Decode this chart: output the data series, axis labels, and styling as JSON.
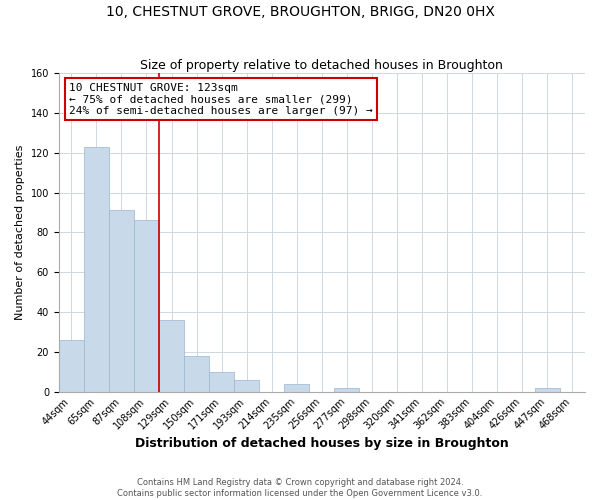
{
  "title": "10, CHESTNUT GROVE, BROUGHTON, BRIGG, DN20 0HX",
  "subtitle": "Size of property relative to detached houses in Broughton",
  "xlabel": "Distribution of detached houses by size in Broughton",
  "ylabel": "Number of detached properties",
  "bar_labels": [
    "44sqm",
    "65sqm",
    "87sqm",
    "108sqm",
    "129sqm",
    "150sqm",
    "171sqm",
    "193sqm",
    "214sqm",
    "235sqm",
    "256sqm",
    "277sqm",
    "298sqm",
    "320sqm",
    "341sqm",
    "362sqm",
    "383sqm",
    "404sqm",
    "426sqm",
    "447sqm",
    "468sqm"
  ],
  "bar_values": [
    26,
    123,
    91,
    86,
    36,
    18,
    10,
    6,
    0,
    4,
    0,
    2,
    0,
    0,
    0,
    0,
    0,
    0,
    0,
    2,
    0
  ],
  "bar_color": "#c8d9ea",
  "bar_edge_color": "#9ab5cf",
  "vline_x_index": 4,
  "vline_color": "#cc0000",
  "ylim": [
    0,
    160
  ],
  "yticks": [
    0,
    20,
    40,
    60,
    80,
    100,
    120,
    140,
    160
  ],
  "annotation_text_line1": "10 CHESTNUT GROVE: 123sqm",
  "annotation_text_line2": "← 75% of detached houses are smaller (299)",
  "annotation_text_line3": "24% of semi-detached houses are larger (97) →",
  "footer_line1": "Contains HM Land Registry data © Crown copyright and database right 2024.",
  "footer_line2": "Contains public sector information licensed under the Open Government Licence v3.0.",
  "background_color": "#ffffff",
  "grid_color": "#d0d8e0",
  "title_fontsize": 10,
  "subtitle_fontsize": 9,
  "xlabel_fontsize": 9,
  "ylabel_fontsize": 8,
  "tick_fontsize": 7,
  "annotation_fontsize": 8,
  "footer_fontsize": 6
}
